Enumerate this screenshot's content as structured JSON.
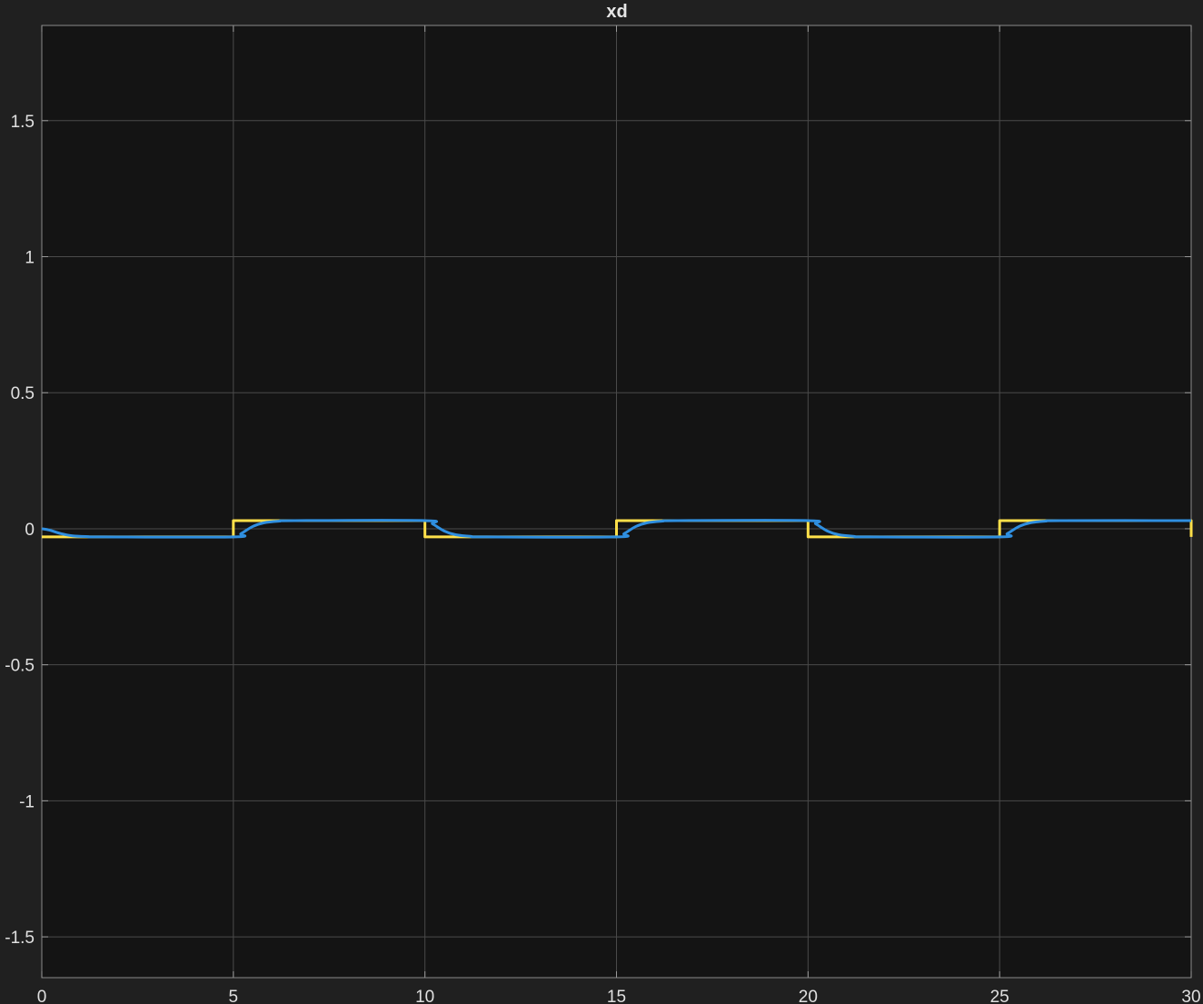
{
  "chart_data": {
    "type": "line",
    "title": "xd",
    "xlabel": "",
    "ylabel": "",
    "xlim": [
      0,
      30
    ],
    "ylim": [
      -1.65,
      1.85
    ],
    "grid": true,
    "background": "#141414",
    "figure_background": "#202020",
    "x_ticks": [
      0,
      5,
      10,
      15,
      20,
      25,
      30
    ],
    "x_tick_labels": [
      "0",
      "5",
      "10",
      "15",
      "20",
      "25",
      "30"
    ],
    "y_ticks": [
      1.5,
      1,
      0.5,
      0,
      -0.5,
      -1,
      -1.5
    ],
    "y_tick_labels": [
      "1.5",
      "1",
      "0.5",
      "0",
      "-0.5",
      "-1",
      "-1.5"
    ],
    "series": [
      {
        "color": "#ffe04a",
        "style": "step",
        "x": [
          0,
          5,
          5,
          10,
          10,
          15,
          15,
          20,
          20,
          25,
          25,
          30,
          30
        ],
        "values": [
          -0.03,
          -0.03,
          0.03,
          0.03,
          -0.03,
          -0.03,
          0.03,
          0.03,
          -0.03,
          -0.03,
          0.03,
          0.03,
          -0.03
        ]
      },
      {
        "color": "#2f8fe0",
        "style": "smooth",
        "x": [
          0,
          0.2,
          0.5,
          0.8,
          1.2,
          1.6,
          5,
          5.2,
          5.5,
          5.8,
          6.2,
          6.6,
          10,
          10.2,
          10.5,
          10.8,
          11.2,
          11.6,
          15,
          15.2,
          15.5,
          15.8,
          16.2,
          16.6,
          20,
          20.2,
          20.5,
          20.8,
          21.2,
          21.6,
          25,
          25.2,
          25.5,
          25.8,
          26.2,
          26.6,
          30
        ],
        "values": [
          0,
          -0.005,
          -0.018,
          -0.026,
          -0.029,
          -0.03,
          -0.03,
          -0.018,
          0.008,
          0.022,
          0.028,
          0.03,
          0.03,
          0.018,
          -0.008,
          -0.022,
          -0.028,
          -0.03,
          -0.03,
          -0.018,
          0.008,
          0.022,
          0.028,
          0.03,
          0.03,
          0.018,
          -0.008,
          -0.022,
          -0.028,
          -0.03,
          -0.03,
          -0.018,
          0.008,
          0.022,
          0.028,
          0.03,
          0.03
        ]
      }
    ]
  }
}
